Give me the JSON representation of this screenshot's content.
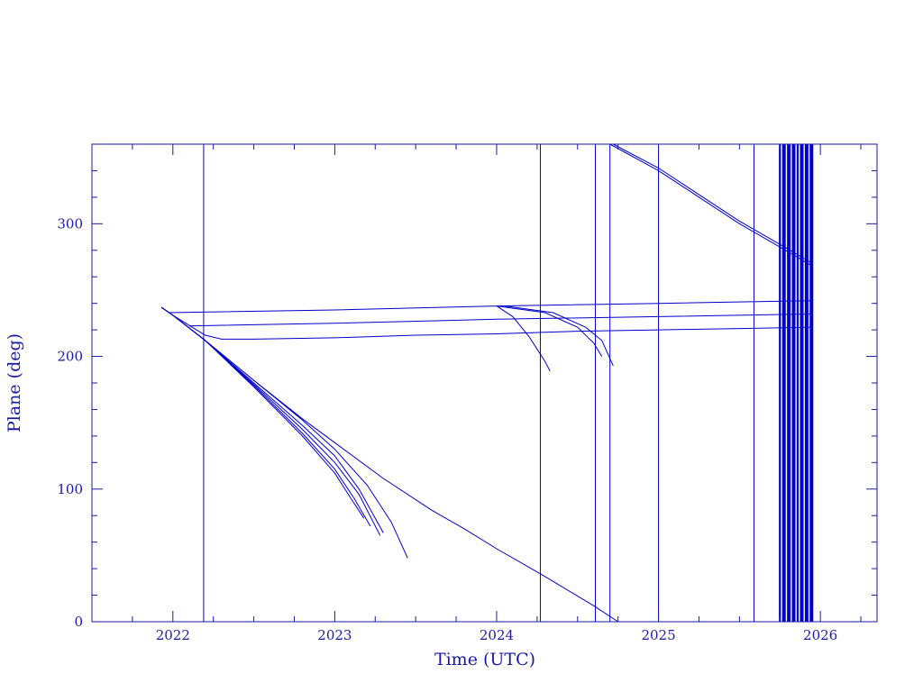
{
  "chart_data": {
    "type": "line",
    "title": "",
    "xlabel": "Time (UTC)",
    "ylabel": "Plane (deg)",
    "xlim": [
      2021.5,
      2026.35
    ],
    "ylim": [
      0,
      360
    ],
    "x_ticks": [
      "2022",
      "2023",
      "2024",
      "2025",
      "2026"
    ],
    "y_ticks": [
      "0",
      "100",
      "200",
      "300"
    ],
    "grid": false,
    "legend": "none",
    "colors": {
      "axis": "#1a1aa6",
      "line": "#0000cc"
    },
    "vertical_lines": [
      2022.19,
      2024.27,
      2024.61,
      2024.7,
      2025.0,
      2025.59,
      2025.75,
      2025.77,
      2025.78,
      2025.8,
      2025.81,
      2025.83,
      2025.84,
      2025.86,
      2025.88,
      2025.89,
      2025.91,
      2025.92,
      2025.94,
      2025.95
    ],
    "series": [
      {
        "x": [
          2021.93,
          2022.0,
          2022.2,
          2022.5,
          2022.8,
          2023.0,
          2023.3,
          2023.6,
          2023.8,
          2024.0,
          2024.3,
          2024.6,
          2024.75
        ],
        "y": [
          237,
          231,
          212,
          182,
          153,
          135,
          108,
          84,
          70,
          55,
          34,
          12,
          0
        ]
      },
      {
        "x": [
          2021.93,
          2022.0,
          2022.2,
          2022.5,
          2022.8,
          2023.0,
          2023.2,
          2023.35,
          2023.45
        ],
        "y": [
          237,
          231,
          212,
          182,
          152,
          130,
          103,
          75,
          48
        ]
      },
      {
        "x": [
          2021.93,
          2022.0,
          2022.2,
          2022.5,
          2022.8,
          2023.0,
          2023.15,
          2023.3
        ],
        "y": [
          237,
          231,
          212,
          180,
          148,
          125,
          100,
          67
        ]
      },
      {
        "x": [
          2021.93,
          2022.0,
          2022.2,
          2022.5,
          2022.8,
          2023.0,
          2023.15,
          2023.28
        ],
        "y": [
          237,
          231,
          212,
          179,
          145,
          120,
          96,
          65
        ]
      },
      {
        "x": [
          2021.93,
          2022.0,
          2022.2,
          2022.5,
          2022.8,
          2023.0,
          2023.12,
          2023.22
        ],
        "y": [
          237,
          231,
          212,
          178,
          142,
          115,
          93,
          72
        ]
      },
      {
        "x": [
          2021.93,
          2022.0,
          2022.2,
          2022.5,
          2022.8,
          2023.0,
          2023.1,
          2023.18
        ],
        "y": [
          237,
          231,
          212,
          177,
          140,
          112,
          93,
          78
        ]
      },
      {
        "x": [
          2021.93,
          2022.0,
          2022.2,
          2022.3,
          2022.5,
          2023.0,
          2023.5,
          2024.0,
          2024.5,
          2025.0,
          2025.5,
          2025.95
        ],
        "y": [
          237,
          231,
          216,
          213,
          213,
          214,
          216,
          217,
          219,
          220,
          221,
          222
        ]
      },
      {
        "x": [
          2022.1,
          2023.0,
          2024.0,
          2025.0,
          2025.95
        ],
        "y": [
          223,
          225,
          228,
          230,
          232
        ]
      },
      {
        "x": [
          2021.97,
          2023.0,
          2024.0,
          2025.0,
          2025.95
        ],
        "y": [
          233,
          235,
          238,
          240,
          242
        ]
      },
      {
        "x": [
          2024.0,
          2024.1,
          2024.2,
          2024.3,
          2024.33
        ],
        "y": [
          238,
          230,
          215,
          196,
          189
        ]
      },
      {
        "x": [
          2024.0,
          2024.3,
          2024.5,
          2024.6,
          2024.65
        ],
        "y": [
          238,
          233,
          222,
          210,
          200
        ]
      },
      {
        "x": [
          2024.05,
          2024.35,
          2024.55,
          2024.65,
          2024.72
        ],
        "y": [
          238,
          233,
          222,
          212,
          193
        ]
      },
      {
        "x": [
          2024.7,
          2025.0,
          2025.5,
          2025.8,
          2025.95
        ],
        "y": [
          360,
          340,
          300,
          279,
          268
        ]
      },
      {
        "x": [
          2024.72,
          2025.0,
          2025.5,
          2025.8,
          2025.95
        ],
        "y": [
          360,
          342,
          302,
          281,
          270
        ]
      }
    ]
  }
}
